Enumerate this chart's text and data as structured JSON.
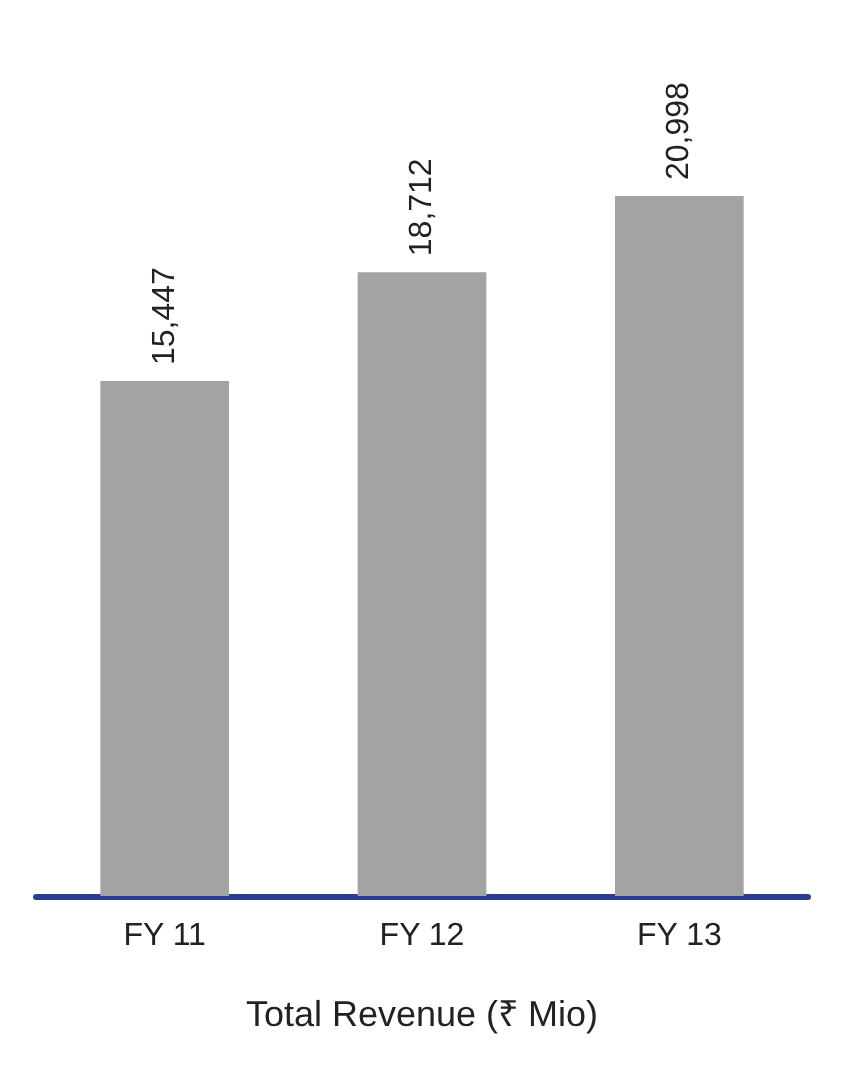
{
  "chart_data": {
    "type": "bar",
    "xlabel": "Total Revenue (₹ Mio)",
    "categories": [
      "FY 11",
      "FY 12",
      "FY 13"
    ],
    "values": [
      15447,
      18712,
      20998
    ],
    "value_labels": [
      "15,447",
      "18,712",
      "20,998"
    ],
    "color": "#a3a3a3",
    "grid": false
  }
}
